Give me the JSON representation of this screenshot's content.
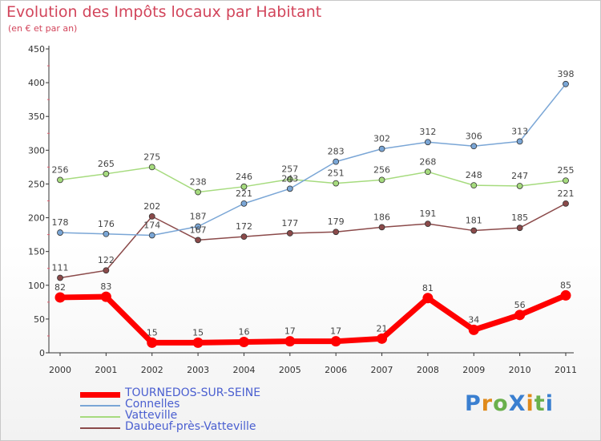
{
  "title": "Evolution des Impôts locaux par Habitant",
  "subtitle": "(en € et par an)",
  "brand": "ProXiti",
  "chart_data": {
    "type": "line",
    "title": "Evolution des Impôts locaux par Habitant",
    "subtitle": "(en € et par an)",
    "xlabel": "",
    "ylabel": "",
    "x": [
      "2000",
      "2001",
      "2002",
      "2003",
      "2004",
      "2005",
      "2006",
      "2007",
      "2008",
      "2009",
      "2010",
      "2011"
    ],
    "ylim": [
      0,
      450
    ],
    "yticks": [
      0,
      50,
      100,
      150,
      200,
      250,
      300,
      350,
      400,
      450
    ],
    "grid": false,
    "legend_position": "bottom-left",
    "series": [
      {
        "name": "TOURNEDOS-SUR-SEINE",
        "color": "#ff0000",
        "emphasis": true,
        "values": [
          82,
          83,
          15,
          15,
          16,
          17,
          17,
          21,
          81,
          34,
          56,
          85
        ]
      },
      {
        "name": "Connelles",
        "color": "#7aa6d6",
        "values": [
          178,
          176,
          174,
          187,
          221,
          243,
          283,
          302,
          312,
          306,
          313,
          398
        ]
      },
      {
        "name": "Vatteville",
        "color": "#a6db7e",
        "values": [
          256,
          265,
          275,
          238,
          246,
          257,
          251,
          256,
          268,
          248,
          247,
          255
        ]
      },
      {
        "name": "Daubeuf-près-Vatteville",
        "color": "#8b4a4a",
        "values": [
          111,
          122,
          202,
          167,
          172,
          177,
          179,
          186,
          191,
          181,
          185,
          221
        ]
      }
    ]
  }
}
